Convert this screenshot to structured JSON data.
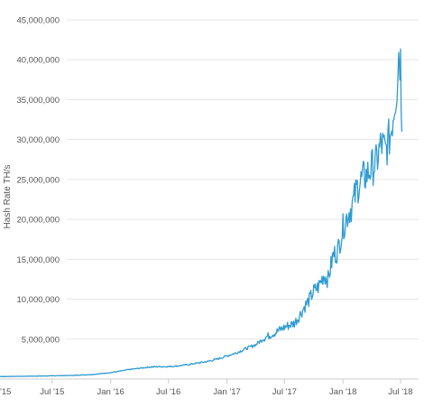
{
  "chart_data": {
    "type": "line",
    "title": "",
    "xlabel": "",
    "ylabel": "Hash Rate TH/s",
    "ylim": [
      0,
      45000000
    ],
    "grid": "horizontal",
    "legend": "none",
    "colors": {
      "line": "#2f9bd0",
      "grid": "#e6e6e6",
      "axis": "#cccccc"
    },
    "y_ticks": [
      {
        "value": 5000000,
        "label": "5,000,000"
      },
      {
        "value": 10000000,
        "label": "10,000,000"
      },
      {
        "value": 15000000,
        "label": "15,000,000"
      },
      {
        "value": 20000000,
        "label": "20,000,000"
      },
      {
        "value": 25000000,
        "label": "25,000,000"
      },
      {
        "value": 30000000,
        "label": "30,000,000"
      },
      {
        "value": 35000000,
        "label": "35,000,000"
      },
      {
        "value": 40000000,
        "label": "40,000,000"
      },
      {
        "value": 45000000,
        "label": "45,000,000"
      }
    ],
    "x_ticks": [
      {
        "date": "2015-01-01",
        "label": "'15"
      },
      {
        "date": "2015-07-01",
        "label": "Jul '15"
      },
      {
        "date": "2016-01-01",
        "label": "Jan '16"
      },
      {
        "date": "2016-07-01",
        "label": "Jul '16"
      },
      {
        "date": "2017-01-01",
        "label": "Jan '17"
      },
      {
        "date": "2017-07-01",
        "label": "Jul '17"
      },
      {
        "date": "2018-01-01",
        "label": "Jan '18"
      },
      {
        "date": "2018-07-01",
        "label": "Jul '18"
      }
    ],
    "series": [
      {
        "x": [
          "2015-01-01",
          "2015-03-01",
          "2015-05-01",
          "2015-07-01",
          "2015-09-01",
          "2015-11-01",
          "2016-01-01",
          "2016-02-01",
          "2016-03-01",
          "2016-04-01",
          "2016-05-01",
          "2016-06-01",
          "2016-07-01",
          "2016-08-01",
          "2016-09-01",
          "2016-10-01",
          "2016-11-01",
          "2016-12-01",
          "2017-01-01",
          "2017-02-01",
          "2017-03-01",
          "2017-04-01",
          "2017-05-01",
          "2017-06-01",
          "2017-07-01",
          "2017-08-01",
          "2017-08-15",
          "2017-09-01",
          "2017-09-15",
          "2017-10-01",
          "2017-10-15",
          "2017-11-01",
          "2017-11-15",
          "2017-12-01",
          "2017-12-15",
          "2018-01-01",
          "2018-01-15",
          "2018-02-01",
          "2018-02-15",
          "2018-03-01",
          "2018-03-15",
          "2018-04-01",
          "2018-04-15",
          "2018-05-01",
          "2018-05-15",
          "2018-06-01",
          "2018-06-10",
          "2018-06-20",
          "2018-06-25",
          "2018-07-01",
          "2018-07-05"
        ],
        "values": [
          300000,
          330000,
          360000,
          400000,
          450000,
          550000,
          800000,
          1000000,
          1200000,
          1350000,
          1500000,
          1550000,
          1550000,
          1650000,
          1800000,
          2000000,
          2200000,
          2500000,
          2900000,
          3300000,
          3800000,
          4300000,
          5200000,
          5800000,
          6500000,
          7000000,
          7800000,
          9000000,
          9800000,
          11000000,
          11500000,
          13000000,
          12500000,
          15500000,
          16000000,
          19000000,
          20500000,
          22000000,
          24000000,
          25000000,
          25500000,
          26500000,
          27000000,
          29500000,
          28500000,
          31000000,
          34000000,
          37000000,
          41000000,
          40000000,
          31000000
        ]
      }
    ]
  }
}
